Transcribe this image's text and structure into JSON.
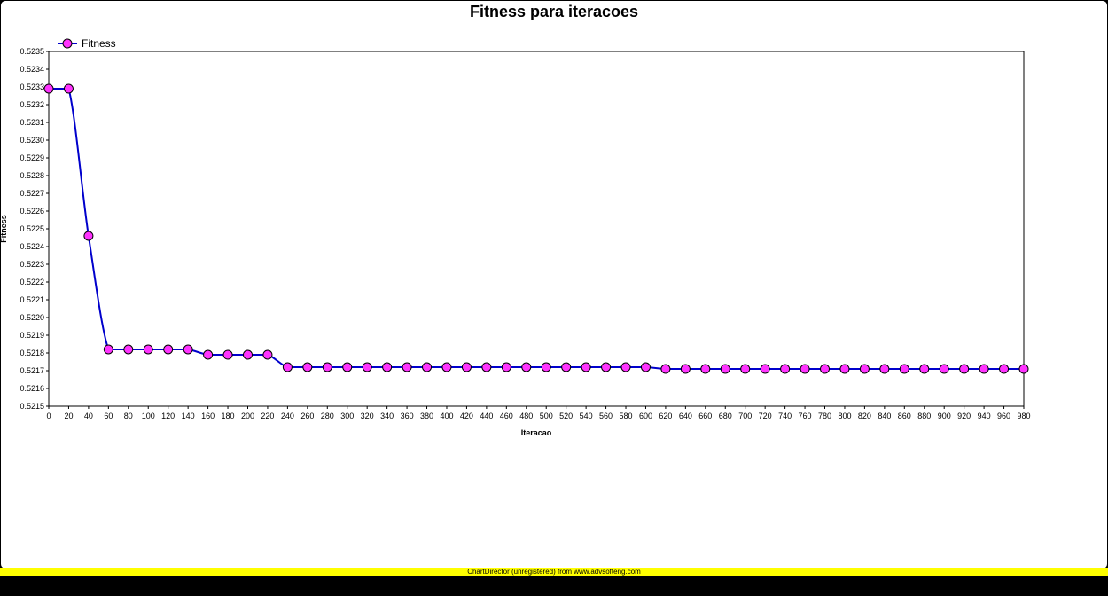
{
  "chart_data": {
    "type": "line",
    "title": "Fitness para iteracoes",
    "xlabel": "Iteracao",
    "ylabel": "Fitness",
    "xlim": [
      0,
      980
    ],
    "ylim": [
      0.5215,
      0.5235
    ],
    "x_ticks": [
      "0",
      "20",
      "40",
      "60",
      "80",
      "100",
      "120",
      "140",
      "160",
      "180",
      "200",
      "220",
      "240",
      "260",
      "280",
      "300",
      "320",
      "340",
      "360",
      "380",
      "400",
      "420",
      "440",
      "460",
      "480",
      "500",
      "520",
      "540",
      "560",
      "580",
      "600",
      "620",
      "640",
      "660",
      "680",
      "700",
      "720",
      "740",
      "760",
      "780",
      "800",
      "820",
      "840",
      "860",
      "880",
      "900",
      "920",
      "940",
      "960",
      "980"
    ],
    "y_ticks": [
      "0.5215",
      "0.5216",
      "0.5217",
      "0.5218",
      "0.5219",
      "0.5220",
      "0.5221",
      "0.5222",
      "0.5223",
      "0.5224",
      "0.5225",
      "0.5226",
      "0.5227",
      "0.5228",
      "0.5229",
      "0.5230",
      "0.5231",
      "0.5232",
      "0.5233",
      "0.5234",
      "0.5235"
    ],
    "legend": "top-left",
    "grid": false,
    "series": [
      {
        "name": "Fitness",
        "line_color": "#0000cc",
        "marker_color": "#ff33ff",
        "x": [
          0,
          20,
          40,
          60,
          80,
          100,
          120,
          140,
          160,
          180,
          200,
          220,
          240,
          260,
          280,
          300,
          320,
          340,
          360,
          380,
          400,
          420,
          440,
          460,
          480,
          500,
          520,
          540,
          560,
          580,
          600,
          620,
          640,
          660,
          680,
          700,
          720,
          740,
          760,
          780,
          800,
          820,
          840,
          860,
          880,
          900,
          920,
          940,
          960,
          980
        ],
        "y": [
          0.52329,
          0.52329,
          0.52246,
          0.52182,
          0.52182,
          0.52182,
          0.52182,
          0.52182,
          0.52179,
          0.52179,
          0.52179,
          0.52179,
          0.52172,
          0.52172,
          0.52172,
          0.52172,
          0.52172,
          0.52172,
          0.52172,
          0.52172,
          0.52172,
          0.52172,
          0.52172,
          0.52172,
          0.52172,
          0.52172,
          0.52172,
          0.52172,
          0.52172,
          0.52172,
          0.52172,
          0.52171,
          0.52171,
          0.52171,
          0.52171,
          0.52171,
          0.52171,
          0.52171,
          0.52171,
          0.52171,
          0.52171,
          0.52171,
          0.52171,
          0.52171,
          0.52171,
          0.52171,
          0.52171,
          0.52171,
          0.52171,
          0.52171
        ]
      }
    ]
  },
  "footer": {
    "watermark": "ChartDirector (unregistered) from www.advsofteng.com"
  }
}
